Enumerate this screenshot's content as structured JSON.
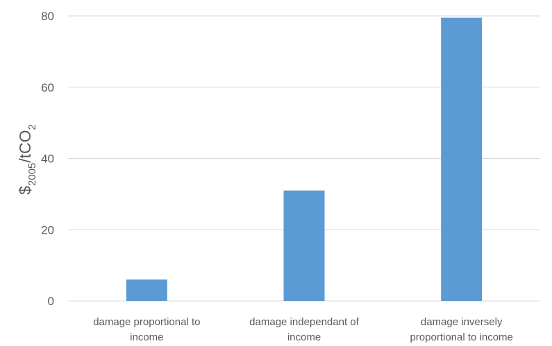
{
  "chart_data": {
    "type": "bar",
    "categories": [
      [
        "damage proportional to",
        "income"
      ],
      [
        "damage independant of",
        "income"
      ],
      [
        "damage inversely",
        "proportional to income"
      ]
    ],
    "values": [
      6,
      31,
      79.5
    ],
    "ylabel": {
      "main": "$",
      "sub1": "2005",
      "mid": "/tCO",
      "sub2": "2"
    },
    "ylim": [
      0,
      80
    ],
    "yticks": [
      0,
      20,
      40,
      60,
      80
    ],
    "grid": true,
    "colors": {
      "bar": "#5b9bd5",
      "grid": "#d9d9d9",
      "text": "#595959"
    }
  }
}
